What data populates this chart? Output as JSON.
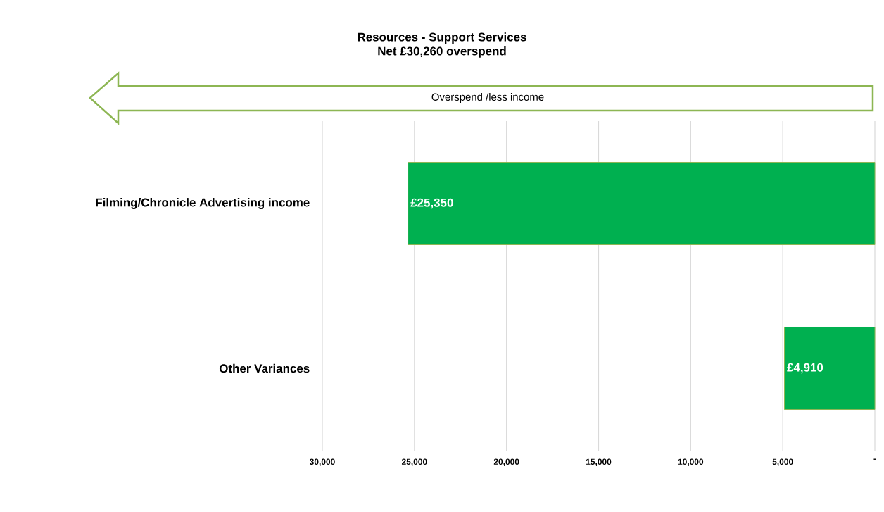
{
  "chart_data": {
    "type": "bar",
    "orientation": "horizontal",
    "title": "Resources - Support Services",
    "subtitle": "Net £30,260 overspend",
    "annotations": [
      "Overspend /less income"
    ],
    "categories": [
      "Filming/Chronicle Advertising income",
      "Other  Variances"
    ],
    "values": [
      25350,
      4910
    ],
    "value_labels": [
      "£25,350",
      "£4,910"
    ],
    "color": "#00b050",
    "xlim": [
      30000,
      0
    ],
    "xticks": [
      {
        "value": 30000,
        "label": "30,000"
      },
      {
        "value": 25000,
        "label": "25,000"
      },
      {
        "value": 20000,
        "label": "20,000"
      },
      {
        "value": 15000,
        "label": "15,000"
      },
      {
        "value": 10000,
        "label": "10,000"
      },
      {
        "value": 5000,
        "label": "5,000"
      },
      {
        "value": 0,
        "label": "-"
      }
    ],
    "grid": "x"
  }
}
